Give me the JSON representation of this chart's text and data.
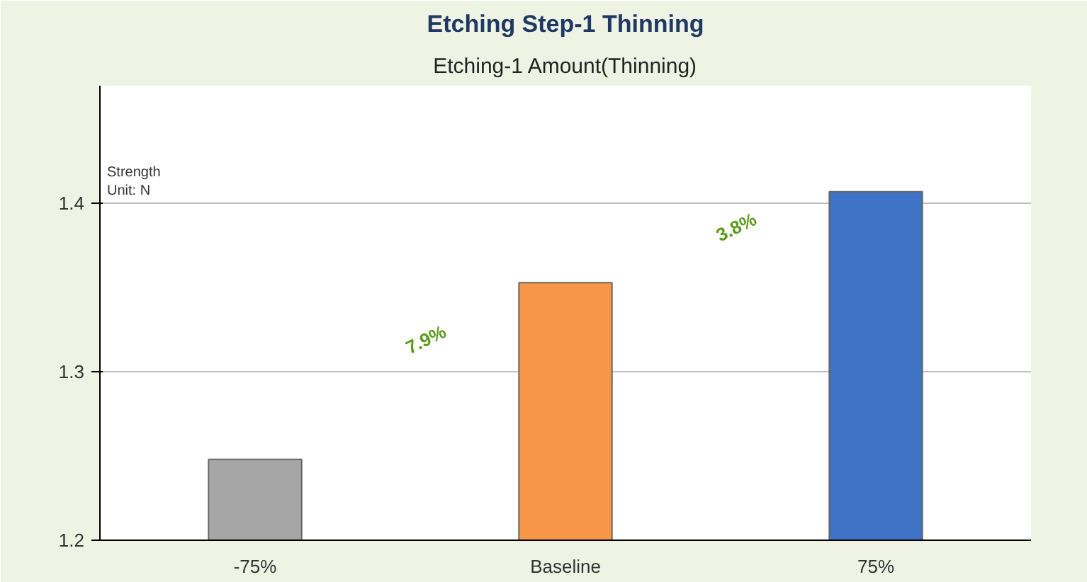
{
  "chart_data": {
    "type": "bar",
    "title": "Etching Step-1 Thinning",
    "subtitle": "Etching-1 Amount(Thinning)",
    "ylabel": "Strength\nUnit: N",
    "categories": [
      "-75%",
      "Baseline",
      "75%"
    ],
    "values": [
      1.248,
      1.353,
      1.407
    ],
    "colors": [
      "#a6a6a6",
      "#f79646",
      "#3d72c4"
    ],
    "ylim": [
      1.2,
      1.47
    ],
    "yticks": [
      1.2,
      1.3,
      1.4
    ],
    "grid": "y",
    "annotations": [
      "7.9%",
      "3.8%"
    ]
  }
}
